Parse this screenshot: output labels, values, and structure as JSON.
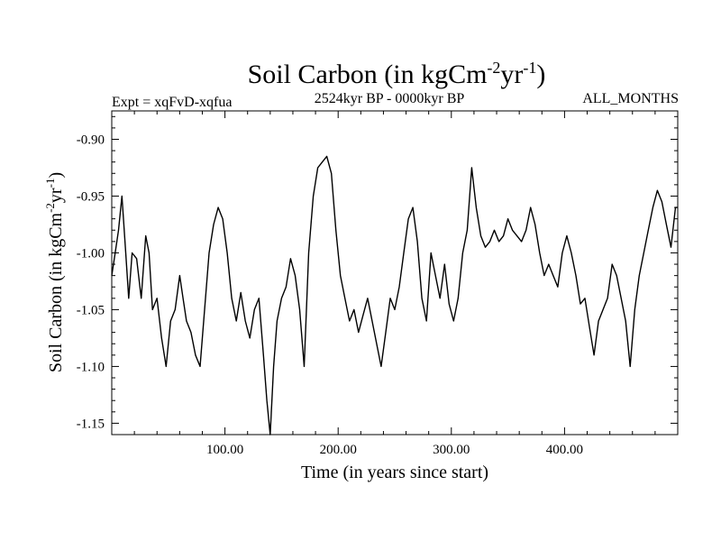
{
  "chart_data": {
    "type": "line",
    "title": {
      "base": "Soil Carbon (in kgCm",
      "exp1": "-2",
      "mid": "yr",
      "exp2": "-1",
      "end": ")"
    },
    "subtitle_left": "Expt = xqFvD-xqfua",
    "subtitle_center": "2524kyr BP - 0000kyr BP",
    "subtitle_right": "ALL_MONTHS",
    "xlabel": "Time (in years since start)",
    "ylabel": {
      "base": "Soil Carbon (in kgCm",
      "exp1": "-2",
      "mid": "yr",
      "exp2": "-1",
      "end": ")"
    },
    "xlim": [
      0,
      500
    ],
    "ylim": [
      -1.16,
      -0.875
    ],
    "xticks": [
      100,
      200,
      300,
      400
    ],
    "xtick_labels": [
      "100.00",
      "200.00",
      "300.00",
      "400.00"
    ],
    "yticks": [
      -0.9,
      -0.95,
      -1.0,
      -1.05,
      -1.1,
      -1.15
    ],
    "ytick_labels": [
      "-0.90",
      "-0.95",
      "-1.00",
      "-1.05",
      "-1.10",
      "-1.15"
    ],
    "series": [
      {
        "name": "Soil Carbon",
        "color": "#000000",
        "x": [
          0,
          3,
          6,
          9,
          12,
          15,
          18,
          22,
          26,
          30,
          33,
          36,
          40,
          44,
          48,
          52,
          56,
          60,
          63,
          66,
          70,
          74,
          78,
          82,
          86,
          90,
          94,
          98,
          102,
          106,
          110,
          114,
          118,
          122,
          126,
          130,
          134,
          137,
          140,
          143,
          146,
          150,
          154,
          158,
          162,
          166,
          170,
          174,
          178,
          182,
          186,
          190,
          194,
          198,
          202,
          206,
          210,
          214,
          218,
          222,
          226,
          230,
          234,
          238,
          242,
          246,
          250,
          254,
          258,
          262,
          266,
          270,
          274,
          278,
          282,
          286,
          290,
          294,
          298,
          302,
          306,
          310,
          314,
          318,
          322,
          326,
          330,
          334,
          338,
          342,
          346,
          350,
          354,
          358,
          362,
          366,
          370,
          374,
          378,
          382,
          386,
          390,
          394,
          398,
          402,
          406,
          410,
          414,
          418,
          422,
          426,
          430,
          434,
          438,
          442,
          446,
          450,
          454,
          458,
          462,
          466,
          470,
          474,
          478,
          482,
          486,
          490,
          494,
          498,
          500
        ],
        "y": [
          -1.02,
          -1.0,
          -0.98,
          -0.95,
          -0.995,
          -1.04,
          -1.0,
          -1.005,
          -1.04,
          -0.985,
          -1.0,
          -1.05,
          -1.04,
          -1.075,
          -1.1,
          -1.06,
          -1.05,
          -1.02,
          -1.04,
          -1.06,
          -1.07,
          -1.09,
          -1.1,
          -1.05,
          -1.0,
          -0.975,
          -0.96,
          -0.97,
          -1.0,
          -1.04,
          -1.06,
          -1.035,
          -1.06,
          -1.075,
          -1.05,
          -1.04,
          -1.09,
          -1.13,
          -1.16,
          -1.1,
          -1.06,
          -1.04,
          -1.03,
          -1.005,
          -1.02,
          -1.05,
          -1.1,
          -1.0,
          -0.95,
          -0.925,
          -0.92,
          -0.915,
          -0.93,
          -0.98,
          -1.02,
          -1.04,
          -1.06,
          -1.05,
          -1.07,
          -1.055,
          -1.04,
          -1.06,
          -1.08,
          -1.1,
          -1.07,
          -1.04,
          -1.05,
          -1.03,
          -1.0,
          -0.97,
          -0.96,
          -0.99,
          -1.04,
          -1.06,
          -1.0,
          -1.02,
          -1.04,
          -1.01,
          -1.045,
          -1.06,
          -1.04,
          -1.0,
          -0.98,
          -0.925,
          -0.96,
          -0.985,
          -0.995,
          -0.99,
          -0.98,
          -0.99,
          -0.985,
          -0.97,
          -0.98,
          -0.985,
          -0.99,
          -0.98,
          -0.96,
          -0.975,
          -1.0,
          -1.02,
          -1.01,
          -1.02,
          -1.03,
          -1.0,
          -0.985,
          -1.0,
          -1.02,
          -1.045,
          -1.04,
          -1.065,
          -1.09,
          -1.06,
          -1.05,
          -1.04,
          -1.01,
          -1.02,
          -1.04,
          -1.06,
          -1.1,
          -1.05,
          -1.02,
          -1.0,
          -0.98,
          -0.96,
          -0.945,
          -0.955,
          -0.975,
          -0.995,
          -0.96,
          -0.96
        ]
      }
    ]
  }
}
